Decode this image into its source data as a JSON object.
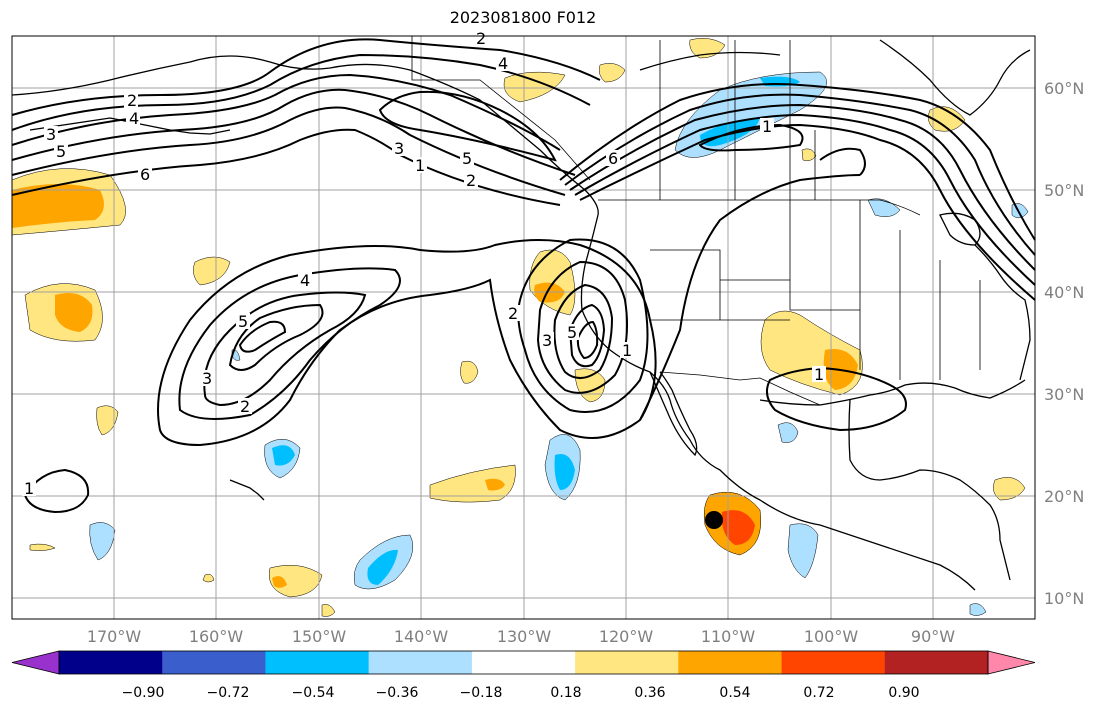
{
  "title": "2023081800 F012",
  "map": {
    "projection": "plate-carree",
    "extent": {
      "lon_min": -180,
      "lon_max": -80,
      "lat_min": 8,
      "lat_max": 65
    },
    "latitude_labels": [
      "60°N",
      "50°N",
      "40°N",
      "30°N",
      "20°N",
      "10°N"
    ],
    "longitude_labels": [
      "170°W",
      "160°W",
      "150°W",
      "140°W",
      "130°W",
      "120°W",
      "110°W",
      "100°W",
      "90°W"
    ],
    "label_color": "#808080",
    "gridlines": true,
    "contour_labels": [
      "2",
      "4",
      "3",
      "5",
      "6",
      "1",
      "2",
      "3",
      "5",
      "6",
      "1",
      "2",
      "4",
      "5",
      "3",
      "2",
      "2",
      "3",
      "4",
      "5",
      "1",
      "1",
      "1"
    ],
    "marker": {
      "name": "storm-center-marker",
      "lon": -110.7,
      "lat": 17.7,
      "color": "#000000"
    }
  },
  "colorbar": {
    "ticks": [
      "−0.90",
      "−0.72",
      "−0.54",
      "−0.36",
      "−0.18",
      "0.18",
      "0.36",
      "0.54",
      "0.72",
      "0.90"
    ],
    "colors": [
      "#9932cc",
      "#00008b",
      "#3a5fcd",
      "#00bfff",
      "#addfff",
      "#ffffff",
      "#ffe680",
      "#ffa500",
      "#ff4500",
      "#b22222",
      "#ff88aa"
    ],
    "extend": "both"
  }
}
